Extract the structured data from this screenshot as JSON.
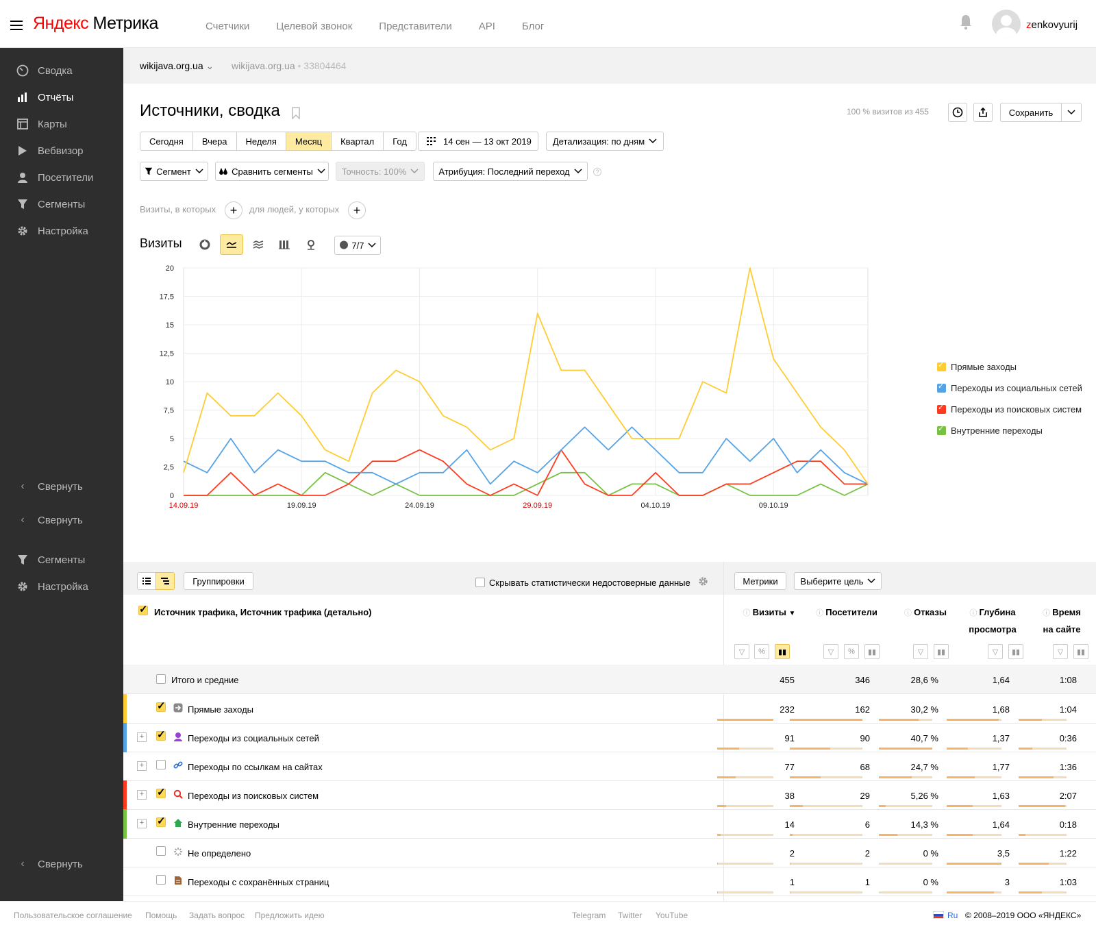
{
  "header": {
    "logo_brand": "Яндекс",
    "logo_product": "Метрика",
    "nav": [
      "Счетчики",
      "Целевой звонок",
      "Представители",
      "API",
      "Блог"
    ],
    "user_first": "z",
    "user_rest": "enkovyurij"
  },
  "sidebar": {
    "items": [
      {
        "label": "Сводка",
        "icon": "gauge-icon"
      },
      {
        "label": "Отчёты",
        "icon": "bar-chart-icon"
      },
      {
        "label": "Карты",
        "icon": "map-icon"
      },
      {
        "label": "Вебвизор",
        "icon": "play-icon"
      },
      {
        "label": "Посетители",
        "icon": "person-icon"
      },
      {
        "label": "Сегменты",
        "icon": "funnel-icon"
      },
      {
        "label": "Настройка",
        "icon": "gear-icon"
      }
    ],
    "collapse1": "Свернуть",
    "collapse2": "Свернуть",
    "segments2": "Сегменты",
    "settings2": "Настройка",
    "collapse3": "Свернуть"
  },
  "breadcrumb": {
    "site": "wikijava.org.ua",
    "site2": "wikijava.org.ua",
    "counter": "33804464"
  },
  "report": {
    "title": "Источники, сводка",
    "visits_info": "100 % визитов из 455",
    "save": "Сохранить",
    "periods": [
      "Сегодня",
      "Вчера",
      "Неделя",
      "Месяц",
      "Квартал",
      "Год"
    ],
    "selected_period": "Месяц",
    "date_range": "14 сен — 13 окт 2019",
    "detail": "Детализация: по дням",
    "segment": "Сегмент",
    "compare": "Сравнить сегменты",
    "accuracy": "Точность: 100%",
    "attribution": "Атрибуция: Последний переход",
    "hint_visits": "Визиты, в которых",
    "hint_people": "для людей, у которых",
    "chart_title": "Визиты",
    "series_counter": "7/7"
  },
  "chart_data": {
    "type": "line",
    "xlabel": "",
    "ylabel": "",
    "ylim": [
      0,
      20
    ],
    "yticks": [
      "0",
      "2,5",
      "5",
      "7,5",
      "10",
      "12,5",
      "15",
      "17,5",
      "20"
    ],
    "xtick_labels": [
      {
        "label": "14.09.19",
        "index": 0,
        "weekend": true
      },
      {
        "label": "19.09.19",
        "index": 5,
        "weekend": false
      },
      {
        "label": "24.09.19",
        "index": 10,
        "weekend": false
      },
      {
        "label": "29.09.19",
        "index": 15,
        "weekend": true
      },
      {
        "label": "04.10.19",
        "index": 20,
        "weekend": false
      },
      {
        "label": "09.10.19",
        "index": 25,
        "weekend": false
      }
    ],
    "x": [
      "14.09.19",
      "15.09.19",
      "16.09.19",
      "17.09.19",
      "18.09.19",
      "19.09.19",
      "20.09.19",
      "21.09.19",
      "22.09.19",
      "23.09.19",
      "24.09.19",
      "25.09.19",
      "26.09.19",
      "27.09.19",
      "28.09.19",
      "29.09.19",
      "30.09.19",
      "01.10.19",
      "02.10.19",
      "03.10.19",
      "04.10.19",
      "05.10.19",
      "06.10.19",
      "07.10.19",
      "08.10.19",
      "09.10.19",
      "10.10.19",
      "11.10.19",
      "12.10.19",
      "13.10.19"
    ],
    "series": [
      {
        "name": "Прямые заходы",
        "color": "#ffcc33",
        "values": [
          2,
          9,
          7,
          7,
          9,
          7,
          4,
          3,
          9,
          11,
          10,
          7,
          6,
          4,
          5,
          16,
          11,
          11,
          8,
          5,
          5,
          5,
          10,
          9,
          20,
          12,
          9,
          6,
          4,
          1
        ]
      },
      {
        "name": "Переходы из социальных сетей",
        "color": "#55a3e6",
        "values": [
          3,
          2,
          5,
          2,
          4,
          3,
          3,
          2,
          2,
          1,
          2,
          2,
          4,
          1,
          3,
          2,
          4,
          6,
          4,
          6,
          4,
          2,
          2,
          5,
          3,
          5,
          2,
          4,
          2,
          1
        ]
      },
      {
        "name": "Переходы из поисковых систем",
        "color": "#ff3b1f",
        "values": [
          0,
          0,
          2,
          0,
          1,
          0,
          0,
          1,
          3,
          3,
          4,
          3,
          1,
          0,
          1,
          0,
          4,
          1,
          0,
          0,
          2,
          0,
          0,
          1,
          1,
          2,
          3,
          3,
          1,
          1
        ]
      },
      {
        "name": "Внутренние переходы",
        "color": "#77c143",
        "values": [
          0,
          0,
          0,
          0,
          0,
          0,
          2,
          1,
          0,
          1,
          0,
          0,
          0,
          0,
          0,
          1,
          2,
          2,
          0,
          1,
          1,
          0,
          0,
          1,
          0,
          0,
          0,
          1,
          0,
          1
        ]
      }
    ]
  },
  "table": {
    "groupings": "Группировки",
    "hide_unreliable": "Скрывать статистически недостоверные данные",
    "metrics": "Метрики",
    "choose_goal": "Выберите цель",
    "dimension_header": "Источник трафика, Источник трафика (детально)",
    "columns": [
      {
        "l1": "Визиты",
        "l2": ""
      },
      {
        "l1": "Посетители",
        "l2": ""
      },
      {
        "l1": "Отказы",
        "l2": ""
      },
      {
        "l1": "Глубина",
        "l2": "просмотра"
      },
      {
        "l1": "Время",
        "l2": "на сайте"
      }
    ],
    "total": {
      "name": "Итого и средние",
      "values": [
        "455",
        "346",
        "28,6 %",
        "1,64",
        "1:08"
      ]
    },
    "rows": [
      {
        "name": "Прямые заходы",
        "color": "#ffcc33",
        "icon": "arrow-icon",
        "checked": true,
        "expandable": false,
        "values": [
          "232",
          "162",
          "30,2 %",
          "1,68",
          "1:04"
        ],
        "fractions": [
          1.0,
          1.0,
          0.74,
          0.95,
          0.49
        ]
      },
      {
        "name": "Переходы из социальных сетей",
        "color": "#55a3e6",
        "icon": "social-icon",
        "checked": true,
        "expandable": true,
        "values": [
          "91",
          "90",
          "40,7 %",
          "1,37",
          "0:36"
        ],
        "fractions": [
          0.39,
          0.56,
          1.0,
          0.39,
          0.28
        ]
      },
      {
        "name": "Переходы по ссылкам на сайтах",
        "color": "",
        "icon": "link-icon",
        "checked": false,
        "expandable": true,
        "values": [
          "77",
          "68",
          "24,7 %",
          "1,77",
          "1:36"
        ],
        "fractions": [
          0.33,
          0.42,
          0.61,
          0.51,
          0.73
        ]
      },
      {
        "name": "Переходы из поисковых систем",
        "color": "#ff3b1f",
        "icon": "search-icon",
        "checked": true,
        "expandable": true,
        "values": [
          "38",
          "29",
          "5,26 %",
          "1,63",
          "2:07"
        ],
        "fractions": [
          0.16,
          0.18,
          0.13,
          0.47,
          0.97
        ]
      },
      {
        "name": "Внутренние переходы",
        "color": "#77c143",
        "icon": "home-icon",
        "checked": true,
        "expandable": true,
        "values": [
          "14",
          "6",
          "14,3 %",
          "1,64",
          "0:18"
        ],
        "fractions": [
          0.06,
          0.04,
          0.35,
          0.47,
          0.14
        ]
      },
      {
        "name": "Не определено",
        "color": "",
        "icon": "spinner-icon",
        "checked": false,
        "expandable": false,
        "values": [
          "2",
          "2",
          "0 %",
          "3,5",
          "1:22"
        ],
        "fractions": [
          0.01,
          0.01,
          0.0,
          1.0,
          0.63
        ]
      },
      {
        "name": "Переходы с сохранённых страниц",
        "color": "",
        "icon": "file-icon",
        "checked": false,
        "expandable": false,
        "values": [
          "1",
          "1",
          "0 %",
          "3",
          "1:03"
        ],
        "fractions": [
          0.005,
          0.006,
          0.0,
          0.86,
          0.48
        ]
      }
    ]
  },
  "footer": {
    "links": [
      "Пользовательское соглашение",
      "Помощь",
      "Задать вопрос",
      "Предложить идею"
    ],
    "social": [
      "Telegram",
      "Twitter",
      "YouTube"
    ],
    "lang": "Ru",
    "copyright": "© 2008–2019 ООО «ЯНДЕКС»"
  }
}
